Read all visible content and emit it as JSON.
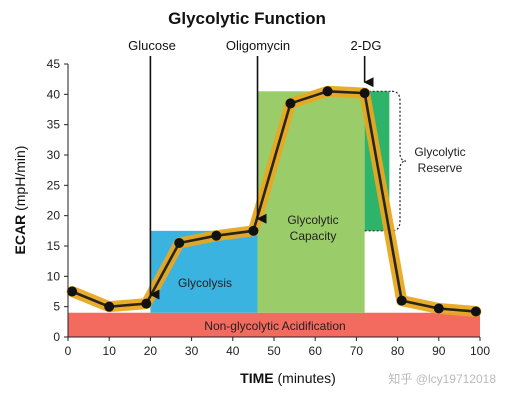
{
  "chart_data": {
    "type": "line",
    "title": "Glycolytic Function",
    "xlabel_bold": "TIME",
    "xlabel_rest": " (minutes)",
    "ylabel_bold": "ECAR",
    "ylabel_rest": " (mpH/min)",
    "xlim": [
      0,
      100
    ],
    "ylim": [
      0,
      45
    ],
    "x_ticks": [
      0,
      10,
      20,
      30,
      40,
      50,
      60,
      70,
      80,
      90,
      100
    ],
    "y_ticks": [
      0,
      5,
      10,
      15,
      20,
      25,
      30,
      35,
      40,
      45
    ],
    "grid": false,
    "series": [
      {
        "x": [
          1,
          10,
          19,
          27,
          36,
          45,
          54,
          63,
          72,
          81,
          90,
          99
        ],
        "y": [
          7.5,
          5,
          5.5,
          15.5,
          16.7,
          17.5,
          38.5,
          40.5,
          40.2,
          6,
          4.7,
          4.2
        ]
      }
    ],
    "injections": [
      {
        "label": "Glucose",
        "x": 20
      },
      {
        "label": "Oligomycin",
        "x": 46
      },
      {
        "label": "2-DG",
        "x": 72
      }
    ],
    "regions": [
      {
        "label": "Non-glycolytic Acidification",
        "x0": 0,
        "x1": 100,
        "y0": 0,
        "y1": 4,
        "color": "#f26b5e"
      },
      {
        "label": "Glycolysis",
        "x0": 20,
        "x1": 46,
        "y0": 4,
        "y1": 17.5,
        "color": "#3bb3e0"
      },
      {
        "label_lines": [
          "Glycolytic",
          "Capacity"
        ],
        "x0": 46,
        "x1": 72,
        "y0": 4,
        "y1": 40.5,
        "color": "#9bcc6a"
      },
      {
        "label_lines": [
          "Glycolytic",
          "Reserve"
        ],
        "x0": 72,
        "x1": 78,
        "y0": 17.5,
        "y1": 40.5,
        "color": "#2db36a"
      }
    ],
    "colors": {
      "line": "#2a2418",
      "band": "#e8a820",
      "marker": "#111111"
    }
  },
  "watermark": "知乎 @lcy19712018"
}
